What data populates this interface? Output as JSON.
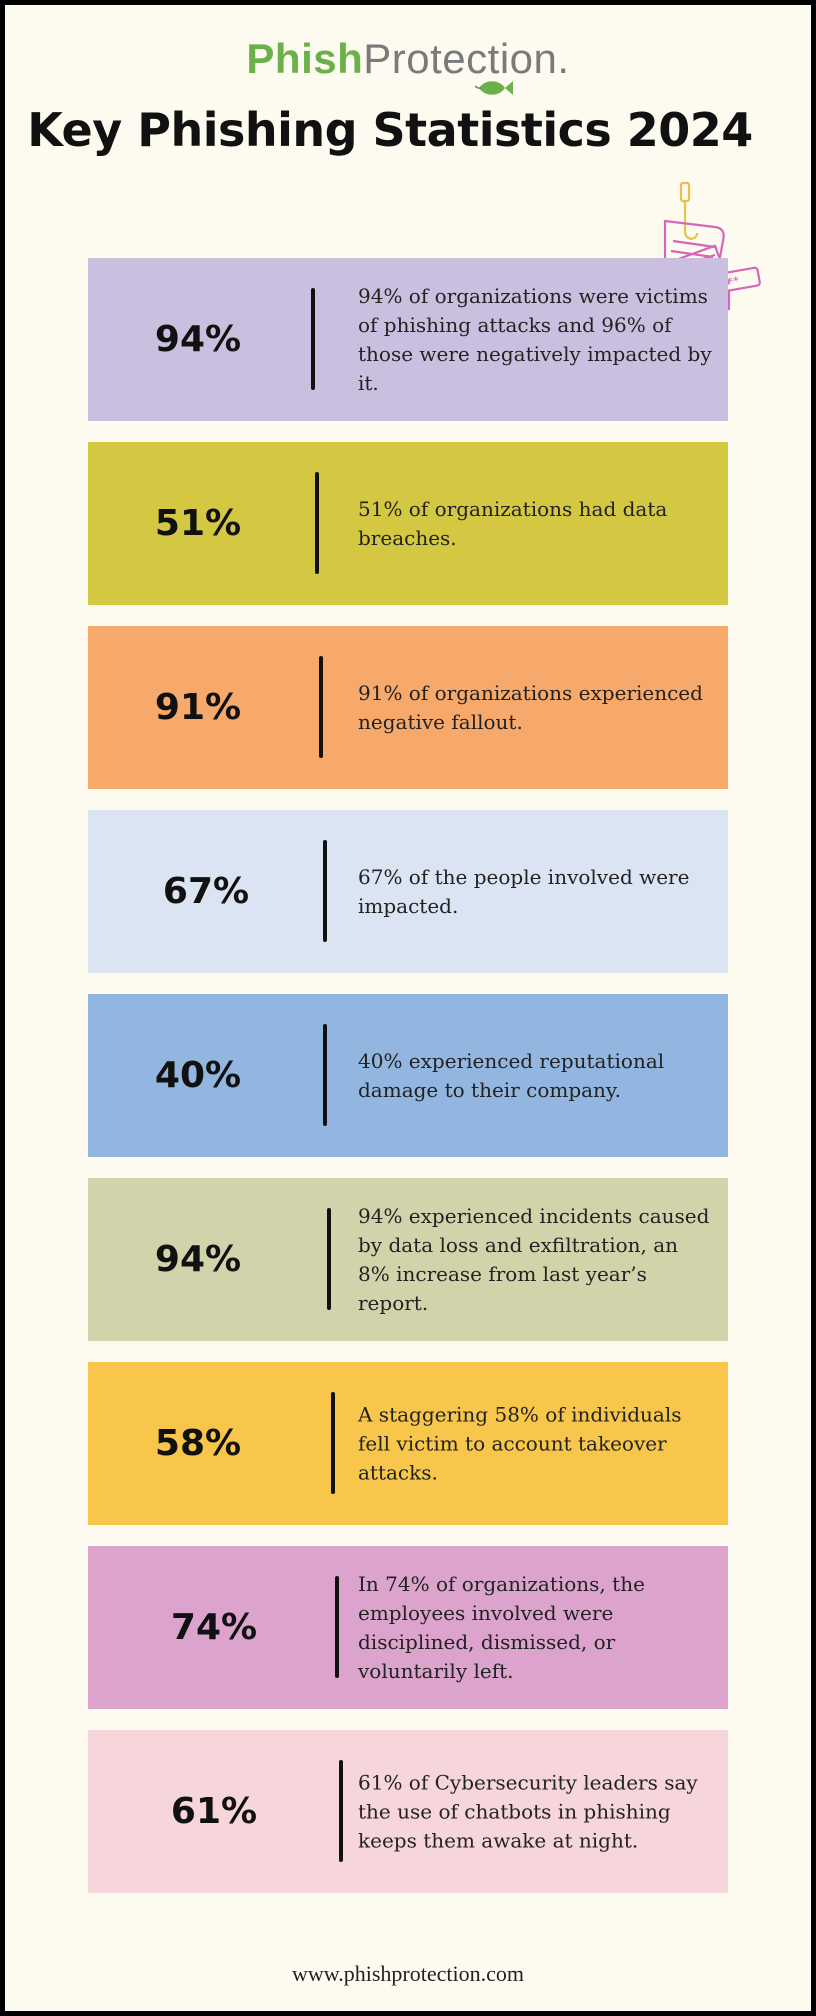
{
  "brand": {
    "logo_part1": "Phish",
    "logo_part2": "Protection."
  },
  "title": "Key Phishing Statistics 2024",
  "colors": {
    "background": "#fdfaf0",
    "logo_green": "#6cb04a",
    "logo_gray": "#7a7a7a"
  },
  "stats": [
    {
      "value": "94%",
      "text": "94% of organizations were victims of phishing attacks and 96% of those were negatively impacted by it.",
      "color": "#cbbfe0"
    },
    {
      "value": "51%",
      "text": "51% of organizations had data breaches.",
      "color": "#d4c843"
    },
    {
      "value": "91%",
      "text": "91% of organizations experienced negative fallout.",
      "color": "#f6a96a"
    },
    {
      "value": "67%",
      "text": "67% of the people involved were impacted.",
      "color": "#dae4f2"
    },
    {
      "value": "40%",
      "text": "40% experienced reputational damage to their company.",
      "color": "#92b6e0"
    },
    {
      "value": "94%",
      "text": "94% experienced incidents caused by data loss and exfiltration, an 8% increase from last year’s report.",
      "color": "#d1d3ab"
    },
    {
      "value": "58%",
      "text": "A staggering 58% of individuals fell victim to account takeover attacks.",
      "color": "#f7c64a"
    },
    {
      "value": "74%",
      "text": "In 74% of organizations, the employees involved were disciplined, dismissed, or voluntarily left.",
      "color": "#dca4cd"
    },
    {
      "value": "61%",
      "text": "61% of Cybersecurity leaders say the use of chatbots in phishing keeps them awake at night.",
      "color": "#f6d6da"
    }
  ],
  "footer": "www.phishprotection.com"
}
